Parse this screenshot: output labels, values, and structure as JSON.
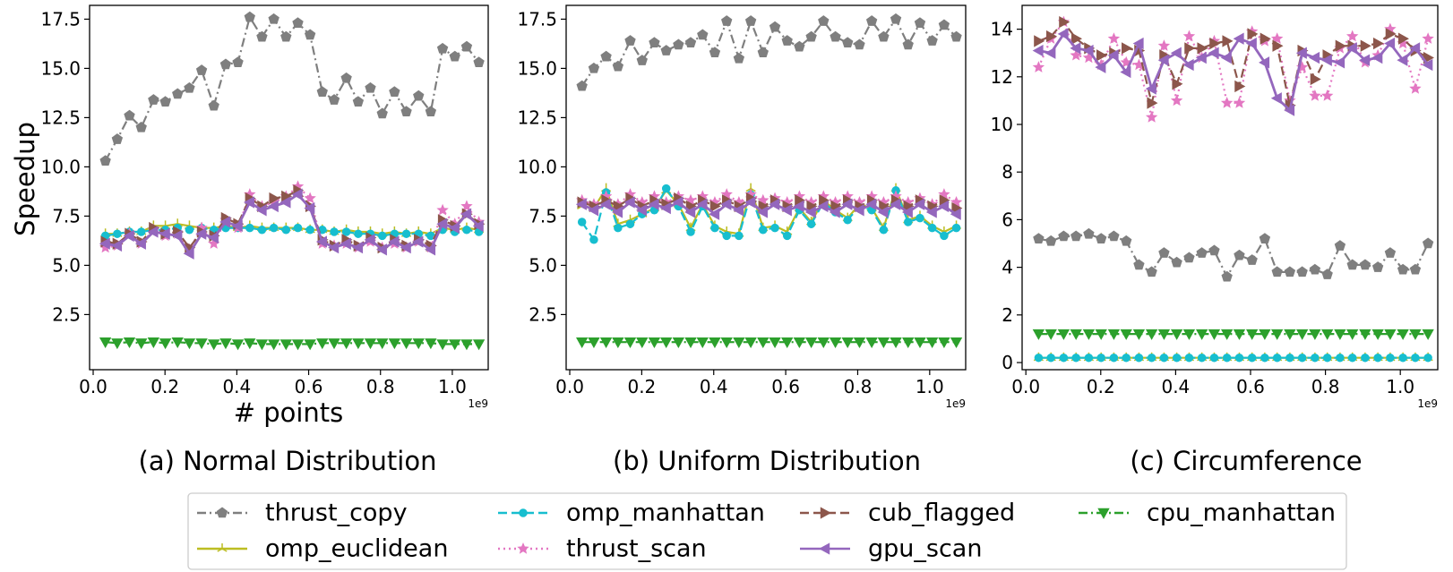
{
  "figure": {
    "captions": [
      "(a) Normal Distribution",
      "(b) Uniform Distribution",
      "(c) Circumference"
    ],
    "ylabel": "Speedup",
    "xlabel": "# points",
    "x_offset_label": "1e9"
  },
  "legend": {
    "entries": [
      {
        "name": "thrust_copy",
        "color": "#7f7f7f",
        "dash": "dashdot",
        "marker": "pentagon"
      },
      {
        "name": "omp_manhattan",
        "color": "#17becf",
        "dash": "dashed",
        "marker": "circle"
      },
      {
        "name": "cub_flagged",
        "color": "#8c564b",
        "dash": "dashed",
        "marker": "triangle-right"
      },
      {
        "name": "cpu_manhattan",
        "color": "#2ca02c",
        "dash": "dashdot",
        "marker": "triangle-down"
      },
      {
        "name": "omp_euclidean",
        "color": "#bcbd22",
        "dash": "solid",
        "marker": "tri"
      },
      {
        "name": "thrust_scan",
        "color": "#e377c2",
        "dash": "dotted",
        "marker": "star"
      },
      {
        "name": "gpu_scan",
        "color": "#9467bd",
        "dash": "solid",
        "marker": "triangle-left"
      }
    ]
  },
  "chart_data": [
    {
      "type": "line",
      "title": "(a) Normal Distribution",
      "xlabel": "# points",
      "ylabel": "Speedup",
      "x_scale_note": "1e9",
      "xlim": [
        -0.01,
        1.1
      ],
      "ylim": [
        -0.3,
        18.2
      ],
      "xticks": [
        0.0,
        0.2,
        0.4,
        0.6,
        0.8,
        1.0
      ],
      "xtick_labels": [
        "0.0",
        "0.2",
        "0.4",
        "0.6",
        "0.8",
        "1.0"
      ],
      "yticks": [
        2.5,
        5.0,
        7.5,
        10.0,
        12.5,
        15.0,
        17.5
      ],
      "ytick_labels": [
        "2.5",
        "5.0",
        "7.5",
        "10.0",
        "12.5",
        "15.0",
        "17.5"
      ],
      "x": [
        0.034,
        0.067,
        0.101,
        0.134,
        0.168,
        0.201,
        0.235,
        0.268,
        0.302,
        0.336,
        0.369,
        0.403,
        0.436,
        0.47,
        0.503,
        0.537,
        0.57,
        0.604,
        0.638,
        0.671,
        0.705,
        0.738,
        0.772,
        0.805,
        0.839,
        0.872,
        0.906,
        0.94,
        0.973,
        1.007,
        1.04,
        1.074
      ],
      "series": [
        {
          "name": "thrust_copy",
          "values": [
            10.3,
            11.4,
            12.6,
            12.0,
            13.4,
            13.3,
            13.7,
            14.0,
            14.9,
            13.1,
            15.2,
            15.3,
            17.6,
            16.6,
            17.5,
            16.6,
            17.3,
            16.7,
            13.8,
            13.4,
            14.5,
            13.3,
            14.0,
            12.7,
            13.8,
            12.8,
            13.6,
            12.8,
            16.0,
            15.6,
            16.1,
            15.3
          ]
        },
        {
          "name": "omp_manhattan",
          "values": [
            6.5,
            6.6,
            6.7,
            6.7,
            6.8,
            6.8,
            6.9,
            6.8,
            6.9,
            6.8,
            6.9,
            6.9,
            6.9,
            6.8,
            6.9,
            6.8,
            6.9,
            6.8,
            6.8,
            6.7,
            6.7,
            6.6,
            6.6,
            6.5,
            6.6,
            6.6,
            6.6,
            6.5,
            6.8,
            6.7,
            6.8,
            6.7
          ]
        },
        {
          "name": "cub_flagged",
          "values": [
            6.2,
            6.1,
            6.6,
            6.2,
            6.9,
            6.6,
            6.7,
            5.9,
            6.7,
            6.5,
            7.4,
            7.1,
            8.4,
            8.0,
            8.4,
            8.5,
            8.8,
            8.0,
            6.3,
            6.0,
            6.3,
            6.0,
            6.4,
            5.9,
            6.3,
            6.0,
            6.3,
            6.0,
            7.3,
            7.0,
            7.6,
            7.1
          ]
        },
        {
          "name": "cpu_manhattan",
          "values": [
            1.1,
            1.05,
            1.1,
            1.05,
            1.1,
            1.05,
            1.1,
            1.05,
            1.05,
            1.0,
            1.05,
            1.0,
            1.05,
            1.0,
            1.0,
            1.0,
            1.0,
            1.0,
            1.05,
            1.05,
            1.05,
            1.05,
            1.05,
            1.05,
            1.05,
            1.05,
            1.05,
            1.05,
            1.0,
            1.0,
            1.0,
            1.0
          ]
        },
        {
          "name": "omp_euclidean",
          "values": [
            6.6,
            6.6,
            6.7,
            6.7,
            7.0,
            7.0,
            7.1,
            7.0,
            6.9,
            6.9,
            7.0,
            6.9,
            7.0,
            6.9,
            6.9,
            6.9,
            6.9,
            6.8,
            6.8,
            6.7,
            6.8,
            6.7,
            6.7,
            6.6,
            6.7,
            6.6,
            6.7,
            6.6,
            6.9,
            6.8,
            6.9,
            6.8
          ]
        },
        {
          "name": "thrust_scan",
          "values": [
            5.9,
            6.0,
            6.6,
            6.1,
            6.8,
            6.5,
            6.6,
            5.8,
            6.9,
            6.1,
            7.3,
            6.9,
            8.6,
            8.0,
            8.2,
            8.5,
            9.0,
            8.4,
            6.1,
            6.0,
            6.1,
            5.9,
            6.2,
            5.9,
            6.1,
            5.9,
            6.2,
            5.9,
            7.8,
            7.1,
            8.0,
            7.2
          ]
        },
        {
          "name": "gpu_scan",
          "values": [
            6.1,
            6.0,
            6.5,
            6.1,
            6.7,
            6.6,
            6.5,
            5.6,
            6.6,
            6.4,
            7.2,
            7.0,
            8.2,
            7.8,
            8.0,
            8.2,
            8.6,
            7.9,
            6.2,
            5.9,
            6.1,
            5.9,
            6.3,
            5.8,
            6.2,
            5.9,
            6.2,
            5.8,
            7.1,
            6.9,
            7.6,
            7.0
          ]
        }
      ]
    },
    {
      "type": "line",
      "title": "(b) Uniform Distribution",
      "xlabel": "",
      "ylabel": "",
      "x_scale_note": "1e9",
      "xlim": [
        -0.01,
        1.1
      ],
      "ylim": [
        -0.3,
        18.2
      ],
      "xticks": [
        0.0,
        0.2,
        0.4,
        0.6,
        0.8,
        1.0
      ],
      "xtick_labels": [
        "0.0",
        "0.2",
        "0.4",
        "0.6",
        "0.8",
        "1.0"
      ],
      "yticks": [
        2.5,
        5.0,
        7.5,
        10.0,
        12.5,
        15.0,
        17.5
      ],
      "ytick_labels": [
        "2.5",
        "5.0",
        "7.5",
        "10.0",
        "12.5",
        "15.0",
        "17.5"
      ],
      "x": [
        0.034,
        0.067,
        0.101,
        0.134,
        0.168,
        0.201,
        0.235,
        0.268,
        0.302,
        0.336,
        0.369,
        0.403,
        0.436,
        0.47,
        0.503,
        0.537,
        0.57,
        0.604,
        0.638,
        0.671,
        0.705,
        0.738,
        0.772,
        0.805,
        0.839,
        0.872,
        0.906,
        0.94,
        0.973,
        1.007,
        1.04,
        1.074
      ],
      "series": [
        {
          "name": "thrust_copy",
          "values": [
            14.1,
            15.0,
            15.6,
            15.1,
            16.4,
            15.4,
            16.3,
            15.9,
            16.2,
            16.3,
            16.7,
            15.8,
            17.4,
            15.5,
            17.4,
            15.8,
            17.1,
            16.4,
            16.1,
            16.6,
            17.4,
            16.6,
            16.3,
            16.2,
            17.4,
            16.6,
            17.5,
            16.2,
            17.3,
            16.4,
            17.2,
            16.6
          ]
        },
        {
          "name": "omp_manhattan",
          "values": [
            7.2,
            6.3,
            8.7,
            6.9,
            7.1,
            7.6,
            7.8,
            8.9,
            8.0,
            6.7,
            8.0,
            6.9,
            6.5,
            6.5,
            8.6,
            6.8,
            6.9,
            6.5,
            7.8,
            7.1,
            8.2,
            7.7,
            7.3,
            8.0,
            7.8,
            6.8,
            8.8,
            7.2,
            7.4,
            6.9,
            6.5,
            6.9
          ]
        },
        {
          "name": "cub_flagged",
          "values": [
            8.2,
            8.0,
            8.3,
            8.0,
            8.4,
            8.0,
            8.3,
            8.1,
            8.4,
            8.0,
            8.3,
            8.0,
            8.3,
            8.0,
            8.4,
            8.0,
            8.3,
            8.0,
            8.3,
            8.0,
            8.3,
            8.0,
            8.3,
            8.0,
            8.3,
            8.0,
            8.3,
            8.0,
            8.3,
            8.0,
            8.3,
            7.9
          ]
        },
        {
          "name": "cpu_manhattan",
          "values": [
            1.1,
            1.1,
            1.1,
            1.1,
            1.1,
            1.1,
            1.1,
            1.1,
            1.1,
            1.1,
            1.1,
            1.1,
            1.1,
            1.1,
            1.1,
            1.1,
            1.1,
            1.1,
            1.1,
            1.1,
            1.1,
            1.1,
            1.1,
            1.1,
            1.1,
            1.1,
            1.1,
            1.1,
            1.1,
            1.1,
            1.1,
            1.1
          ]
        },
        {
          "name": "omp_euclidean",
          "values": [
            8.0,
            7.9,
            8.9,
            7.1,
            7.3,
            7.6,
            7.9,
            8.8,
            8.1,
            6.9,
            8.1,
            7.0,
            6.7,
            6.6,
            8.9,
            6.9,
            7.0,
            6.7,
            7.9,
            7.2,
            8.3,
            7.8,
            7.4,
            8.1,
            7.9,
            6.9,
            8.9,
            7.3,
            7.5,
            7.0,
            6.7,
            7.0
          ]
        },
        {
          "name": "thrust_scan",
          "values": [
            8.3,
            8.1,
            8.5,
            8.1,
            8.6,
            8.2,
            8.5,
            8.2,
            8.5,
            8.3,
            8.5,
            8.2,
            8.6,
            8.2,
            8.6,
            8.3,
            8.4,
            8.2,
            8.5,
            8.2,
            8.5,
            8.2,
            8.5,
            8.2,
            8.5,
            8.2,
            8.5,
            8.2,
            8.4,
            8.1,
            8.6,
            8.2
          ]
        },
        {
          "name": "gpu_scan",
          "values": [
            8.1,
            7.8,
            8.1,
            7.7,
            8.2,
            7.8,
            8.1,
            7.9,
            8.2,
            7.7,
            8.1,
            7.6,
            8.1,
            7.8,
            8.2,
            7.7,
            8.1,
            7.8,
            8.0,
            7.7,
            8.0,
            7.7,
            8.1,
            7.8,
            8.1,
            7.7,
            8.1,
            7.7,
            8.1,
            7.7,
            8.0,
            7.6
          ]
        }
      ]
    },
    {
      "type": "line",
      "title": "(c) Circumference",
      "xlabel": "",
      "ylabel": "",
      "x_scale_note": "1e9",
      "xlim": [
        -0.01,
        1.1
      ],
      "ylim": [
        -0.3,
        15.0
      ],
      "xticks": [
        0.0,
        0.2,
        0.4,
        0.6,
        0.8,
        1.0
      ],
      "xtick_labels": [
        "0.0",
        "0.2",
        "0.4",
        "0.6",
        "0.8",
        "1.0"
      ],
      "yticks": [
        0,
        2,
        4,
        6,
        8,
        10,
        12,
        14
      ],
      "ytick_labels": [
        "0",
        "2",
        "4",
        "6",
        "8",
        "10",
        "12",
        "14"
      ],
      "x": [
        0.034,
        0.067,
        0.101,
        0.134,
        0.168,
        0.201,
        0.235,
        0.268,
        0.302,
        0.336,
        0.369,
        0.403,
        0.436,
        0.47,
        0.503,
        0.537,
        0.57,
        0.604,
        0.638,
        0.671,
        0.705,
        0.738,
        0.772,
        0.805,
        0.839,
        0.872,
        0.906,
        0.94,
        0.973,
        1.007,
        1.04,
        1.074
      ],
      "series": [
        {
          "name": "thrust_copy",
          "values": [
            5.2,
            5.1,
            5.3,
            5.3,
            5.4,
            5.2,
            5.3,
            5.1,
            4.1,
            3.8,
            4.6,
            4.2,
            4.4,
            4.6,
            4.7,
            3.6,
            4.5,
            4.3,
            5.2,
            3.8,
            3.8,
            3.8,
            3.9,
            3.7,
            4.9,
            4.1,
            4.1,
            4.0,
            4.6,
            3.9,
            3.9,
            5.0
          ]
        },
        {
          "name": "omp_manhattan",
          "values": [
            0.2,
            0.2,
            0.2,
            0.2,
            0.2,
            0.2,
            0.2,
            0.2,
            0.2,
            0.2,
            0.2,
            0.2,
            0.2,
            0.2,
            0.2,
            0.2,
            0.2,
            0.2,
            0.2,
            0.2,
            0.2,
            0.2,
            0.2,
            0.2,
            0.2,
            0.2,
            0.2,
            0.2,
            0.2,
            0.2,
            0.2,
            0.2
          ]
        },
        {
          "name": "cub_flagged",
          "values": [
            13.5,
            13.7,
            14.3,
            13.6,
            13.2,
            12.9,
            13.0,
            13.2,
            13.1,
            10.9,
            12.9,
            11.7,
            13.2,
            13.2,
            13.4,
            13.5,
            11.6,
            13.8,
            13.6,
            13.3,
            10.8,
            13.1,
            11.9,
            12.9,
            13.3,
            13.3,
            13.3,
            13.4,
            13.8,
            13.6,
            13.1,
            12.8
          ]
        },
        {
          "name": "cpu_manhattan",
          "values": [
            1.2,
            1.2,
            1.2,
            1.2,
            1.2,
            1.2,
            1.2,
            1.2,
            1.2,
            1.2,
            1.2,
            1.2,
            1.2,
            1.2,
            1.2,
            1.2,
            1.2,
            1.2,
            1.2,
            1.2,
            1.2,
            1.2,
            1.2,
            1.2,
            1.2,
            1.2,
            1.2,
            1.2,
            1.2,
            1.2,
            1.2,
            1.2
          ]
        },
        {
          "name": "omp_euclidean",
          "values": [
            0.2,
            0.2,
            0.2,
            0.2,
            0.2,
            0.2,
            0.2,
            0.2,
            0.2,
            0.2,
            0.2,
            0.2,
            0.2,
            0.2,
            0.2,
            0.2,
            0.2,
            0.2,
            0.2,
            0.2,
            0.2,
            0.2,
            0.2,
            0.2,
            0.2,
            0.2,
            0.2,
            0.2,
            0.2,
            0.2,
            0.2,
            0.2
          ]
        },
        {
          "name": "thrust_scan",
          "values": [
            12.4,
            13.6,
            14.3,
            12.9,
            12.8,
            12.5,
            13.6,
            12.6,
            12.5,
            10.3,
            13.3,
            11.0,
            13.7,
            12.8,
            13.5,
            10.9,
            10.9,
            13.9,
            13.5,
            13.6,
            11.0,
            12.4,
            11.2,
            11.2,
            13.2,
            13.7,
            12.6,
            12.9,
            14.0,
            13.4,
            11.5,
            13.6
          ]
        },
        {
          "name": "gpu_scan",
          "values": [
            13.1,
            13.0,
            13.8,
            13.2,
            13.1,
            12.4,
            12.9,
            12.2,
            13.4,
            11.5,
            12.7,
            13.0,
            12.5,
            12.8,
            13.0,
            12.8,
            13.6,
            13.4,
            12.6,
            11.1,
            10.6,
            13.0,
            12.8,
            12.7,
            12.6,
            13.2,
            12.7,
            12.8,
            13.4,
            12.7,
            13.2,
            12.5
          ]
        }
      ]
    }
  ]
}
